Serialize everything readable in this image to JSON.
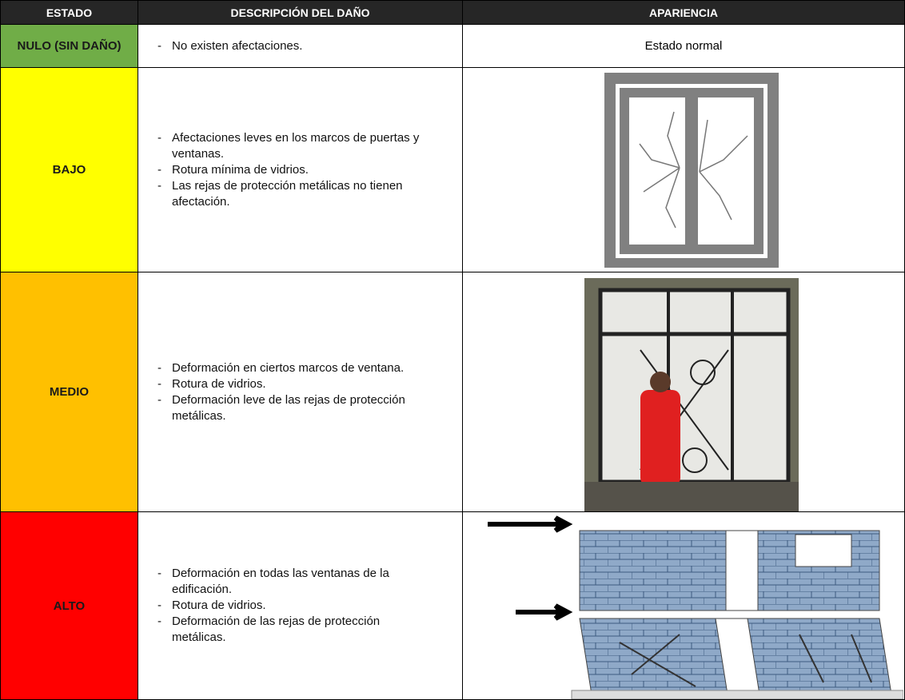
{
  "table": {
    "headers": [
      "ESTADO",
      "DESCRIPCIÓN DEL DAÑO",
      "APARIENCIA"
    ],
    "rows": [
      {
        "estado": "NULO (SIN DAÑO)",
        "description": [
          "No existen afectaciones."
        ],
        "appearance": "Estado normal"
      },
      {
        "estado": "BAJO",
        "description": [
          "Afectaciones leves en los marcos de puertas y ventanas.",
          "Rotura mínima de vidrios.",
          "Las rejas de protección metálicas no tienen afectación."
        ]
      },
      {
        "estado": "MEDIO",
        "description": [
          "Deformación en ciertos marcos de ventana.",
          "Rotura de vidrios.",
          "Deformación leve de las rejas de protección metálicas."
        ]
      },
      {
        "estado": "ALTO",
        "description": [
          "Deformación en todas las ventanas de la edificación.",
          "Rotura de vidrios.",
          "Deformación de las rejas de protección metálicas."
        ]
      }
    ]
  }
}
